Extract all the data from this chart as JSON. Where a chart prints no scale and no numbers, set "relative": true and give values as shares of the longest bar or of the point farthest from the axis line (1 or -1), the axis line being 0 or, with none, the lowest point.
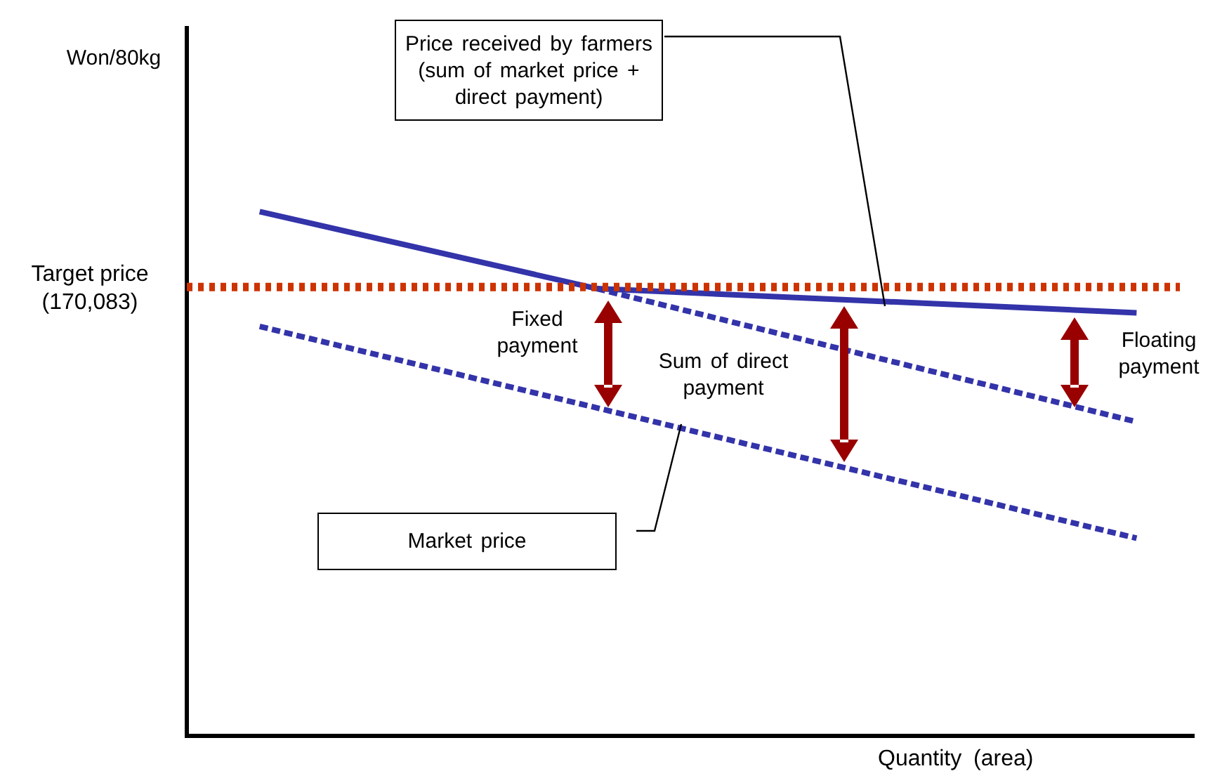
{
  "chart_data": {
    "type": "line",
    "relative": true,
    "xlabel": "Quantity (area)",
    "categories": [
      null,
      null,
      null,
      null,
      null,
      null,
      null,
      null,
      null,
      null,
      null,
      null,
      null,
      null
    ],
    "series": [
      {
        "color": "#3333aa",
        "line_style": "solid",
        "values": [
          1,
          null,
          null,
          null,
          null,
          0.853,
          null,
          null,
          null,
          null,
          null,
          null,
          null,
          0.807
        ]
      },
      {
        "color": "#3333aa",
        "line_style": "dashed",
        "values": [
          null,
          null,
          null,
          null,
          null,
          0.853,
          null,
          null,
          null,
          null,
          null,
          null,
          null,
          0.599
        ]
      },
      {
        "color": "#3333aa",
        "line_style": "dashed",
        "values": [
          0.781,
          null,
          null,
          null,
          null,
          null,
          null,
          null,
          null,
          null,
          null,
          null,
          null,
          0.377
        ]
      }
    ],
    "ref_lines": [
      {
        "axis": "y",
        "value": 0.856,
        "label": "Target price\n(170,083)",
        "color": "#cc3300",
        "line_style": "dotted"
      }
    ],
    "annotations": [
      "Price received by farmers\n(sum of market price +\ndirect payment)",
      "Market price",
      "Fixed\npayment",
      "Sum of direct\npayment",
      "Floating\npayment",
      "Won/80kg"
    ],
    "grid": false,
    "legend": false,
    "marker": "none"
  }
}
